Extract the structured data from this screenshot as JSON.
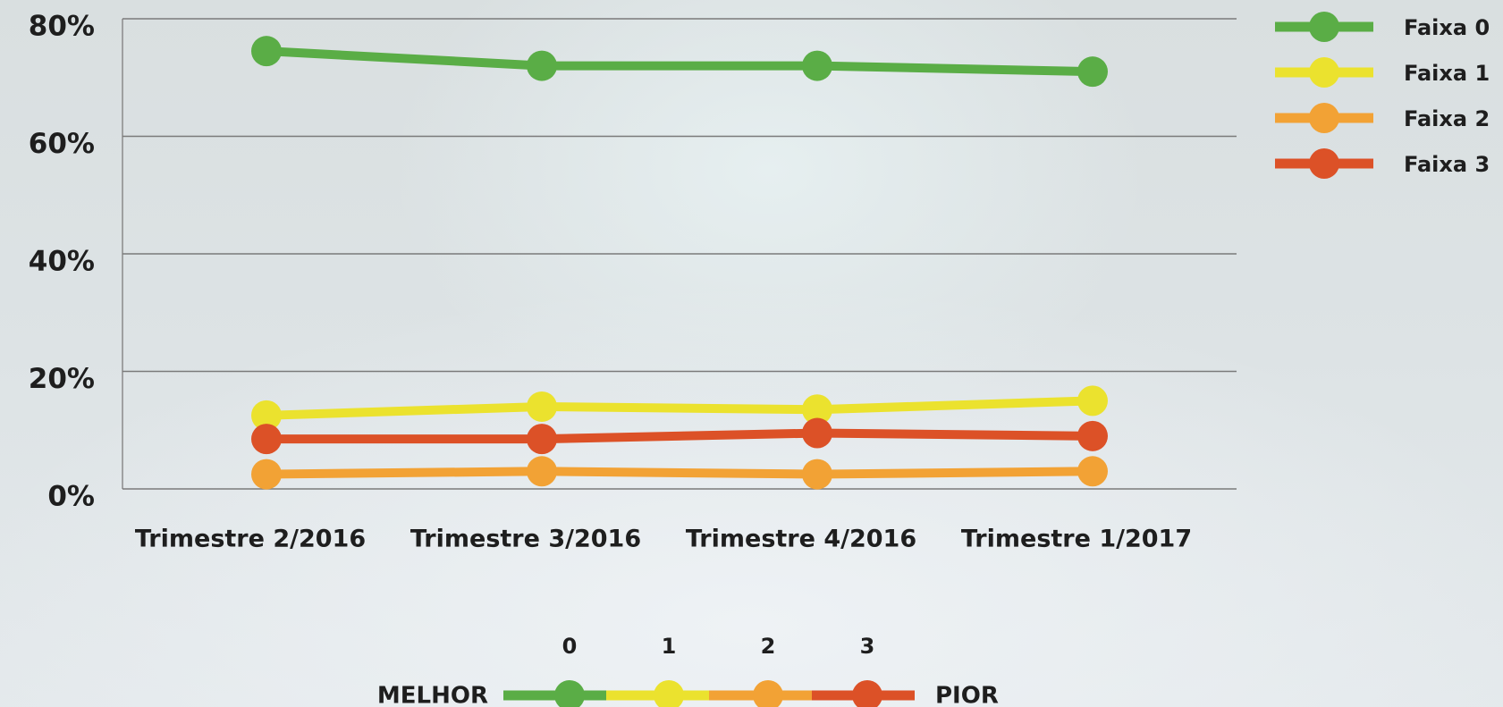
{
  "chart_data": {
    "type": "line",
    "categories": [
      "Trimestre 2/2016",
      "Trimestre 3/2016",
      "Trimestre 4/2016",
      "Trimestre 1/2017"
    ],
    "series": [
      {
        "name": "Faixa 0",
        "color": "#5aad46",
        "values": [
          74.5,
          72,
          72,
          71
        ]
      },
      {
        "name": "Faixa 1",
        "color": "#ebe22e",
        "values": [
          12.5,
          14,
          13.5,
          15
        ]
      },
      {
        "name": "Faixa 2",
        "color": "#f2a235",
        "values": [
          2.5,
          3,
          2.5,
          3
        ]
      },
      {
        "name": "Faixa 3",
        "color": "#dc5127",
        "values": [
          8.5,
          8.5,
          9.5,
          9
        ]
      }
    ],
    "ylim": [
      0,
      80
    ],
    "yticks": [
      {
        "value": 0,
        "label": "0%"
      },
      {
        "value": 20,
        "label": "20%"
      },
      {
        "value": 40,
        "label": "40%"
      },
      {
        "value": 60,
        "label": "60%"
      },
      {
        "value": 80,
        "label": "80%"
      }
    ],
    "grid": true,
    "legend": "top-right",
    "scale": {
      "labels": [
        "0",
        "1",
        "2",
        "3"
      ],
      "left": "MELHOR",
      "right": "PIOR"
    }
  }
}
